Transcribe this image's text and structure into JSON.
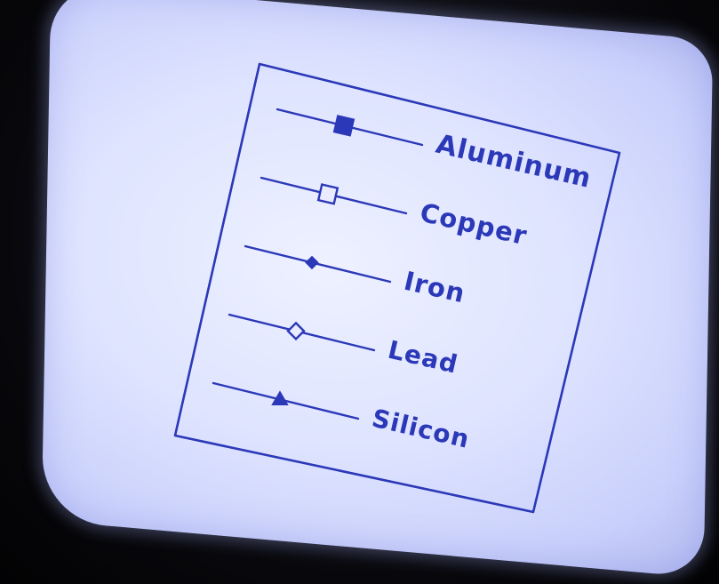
{
  "chart_data": {
    "type": "legend",
    "entries": [
      {
        "label": "Aluminum",
        "marker": "filled-square"
      },
      {
        "label": "Copper",
        "marker": "open-square"
      },
      {
        "label": "Iron",
        "marker": "filled-diamond"
      },
      {
        "label": "Lead",
        "marker": "open-diamond"
      },
      {
        "label": "Silicon",
        "marker": "filled-triangle"
      }
    ],
    "colors": {
      "ink": "#2b38b8",
      "screen": "#e6e9ff"
    }
  }
}
